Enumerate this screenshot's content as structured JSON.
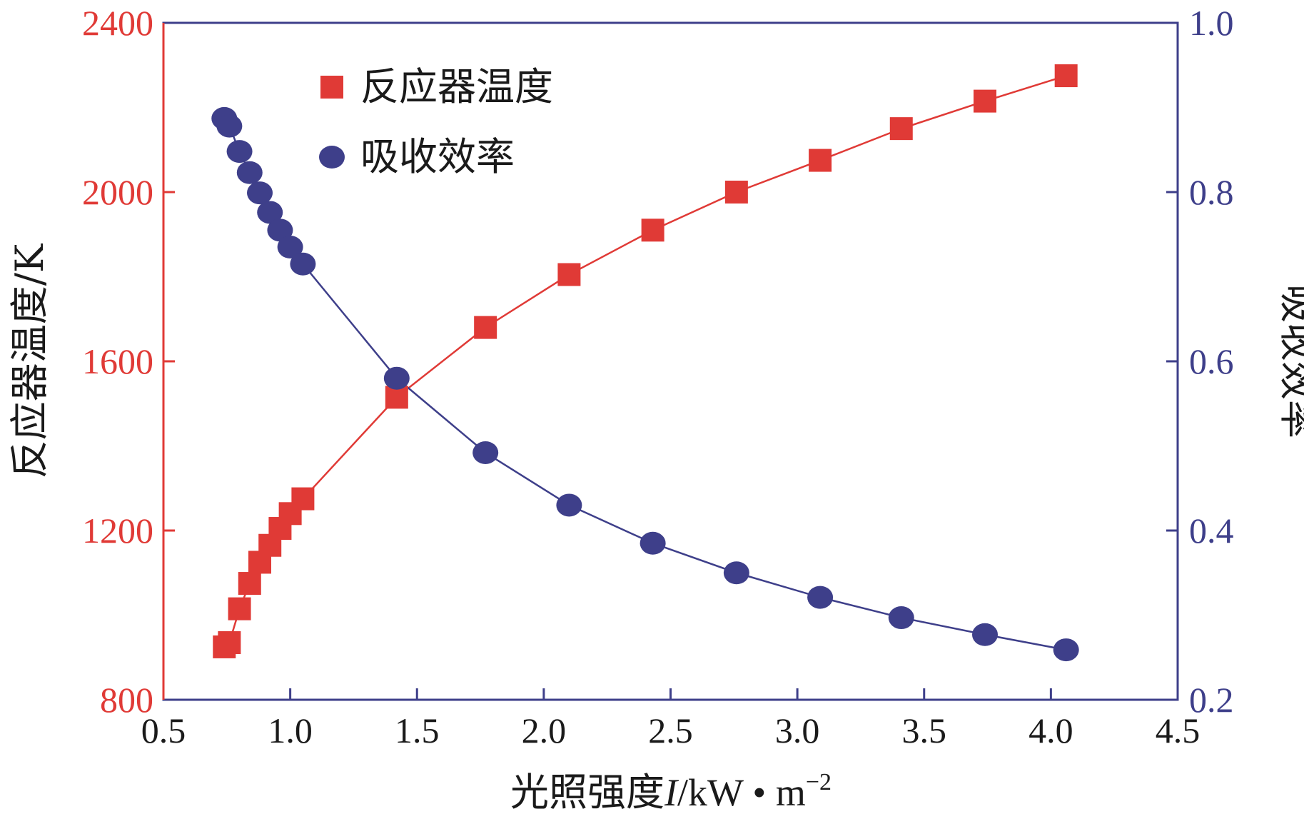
{
  "chart_data": {
    "type": "scatter",
    "xlabel_main": "光照强度",
    "xlabel_italic": "I",
    "xlabel_unit": "/kW • m",
    "xlabel_sup": "−2",
    "ylabel_left": "反应器温度/K",
    "ylabel_right": "吸收效率",
    "xlim": [
      0.5,
      4.5
    ],
    "ylim_left": [
      800,
      2400
    ],
    "ylim_right": [
      0.2,
      1.0
    ],
    "x_ticks": [
      "0.5",
      "1.0",
      "1.5",
      "2.0",
      "2.5",
      "3.0",
      "3.5",
      "4.0",
      "4.5"
    ],
    "y_left_ticks": [
      "800",
      "1200",
      "1600",
      "2000",
      "2400"
    ],
    "y_right_ticks": [
      "0.2",
      "0.4",
      "0.6",
      "0.8",
      "1.0"
    ],
    "colors": {
      "temperature": "#e03a36",
      "efficiency": "#3e3f8a",
      "frame": "#3e3f8a"
    },
    "series": [
      {
        "name": "反应器温度",
        "axis": "left",
        "marker": "square",
        "x": [
          0.74,
          0.76,
          0.8,
          0.84,
          0.88,
          0.92,
          0.96,
          1.0,
          1.05,
          1.42,
          1.77,
          2.1,
          2.43,
          2.76,
          3.09,
          3.41,
          3.74,
          4.06
        ],
        "y": [
          925,
          935,
          1015,
          1075,
          1125,
          1165,
          1205,
          1240,
          1275,
          1515,
          1680,
          1805,
          1910,
          2000,
          2075,
          2150,
          2215,
          2275
        ]
      },
      {
        "name": "吸收效率",
        "axis": "right",
        "marker": "circle",
        "x": [
          0.74,
          0.76,
          0.8,
          0.84,
          0.88,
          0.92,
          0.96,
          1.0,
          1.05,
          1.42,
          1.77,
          2.1,
          2.43,
          2.76,
          3.09,
          3.41,
          3.74,
          4.06
        ],
        "y": [
          0.887,
          0.878,
          0.848,
          0.823,
          0.799,
          0.776,
          0.755,
          0.735,
          0.715,
          0.58,
          0.492,
          0.43,
          0.385,
          0.35,
          0.321,
          0.297,
          0.277,
          0.259
        ]
      }
    ]
  }
}
